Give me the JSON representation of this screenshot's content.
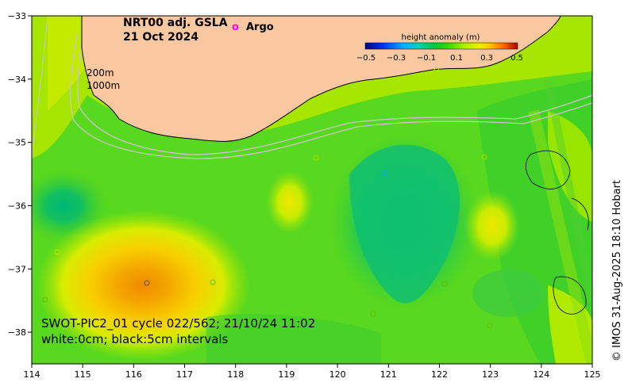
{
  "title": {
    "line1": "NRT00 adj. GSLA",
    "line2": "21 Oct 2024"
  },
  "legend": {
    "argo_symbol": "o",
    "argo_label": "Argo",
    "argo_color": "#ff00ff"
  },
  "depth_labels": [
    "200m",
    "1000m"
  ],
  "colorbar": {
    "title": "height anomaly (m)",
    "tick_labels": [
      "−0.5",
      "−0.3",
      "−0.1",
      "0.1",
      "0.3",
      "0.5"
    ],
    "min": -0.5,
    "max": 0.5,
    "colors": [
      "#00007f",
      "#0033ff",
      "#00b3ff",
      "#00d9b0",
      "#00c43a",
      "#30d400",
      "#a8ec00",
      "#e8f000",
      "#ffcc00",
      "#ff9900",
      "#ff5500",
      "#b30000"
    ]
  },
  "annotation": {
    "line1": "SWOT-PIC2_01 cycle 022/562; 21/10/24 11:02",
    "line2": "white:0cm; black:5cm intervals"
  },
  "credit": "© IMOS 31-Aug-2025 18:10 Hobart",
  "axes": {
    "x_ticks": [
      "114",
      "115",
      "116",
      "117",
      "118",
      "119",
      "120",
      "121",
      "122",
      "123",
      "124",
      "125"
    ],
    "y_ticks": [
      "−33",
      "−34",
      "−35",
      "−36",
      "−37",
      "−38"
    ],
    "lon_range": [
      114,
      125
    ],
    "lat_range": [
      -33,
      -38.5
    ]
  },
  "colors": {
    "land": "#fac8a0",
    "background_anomaly": "#66dd1a"
  }
}
